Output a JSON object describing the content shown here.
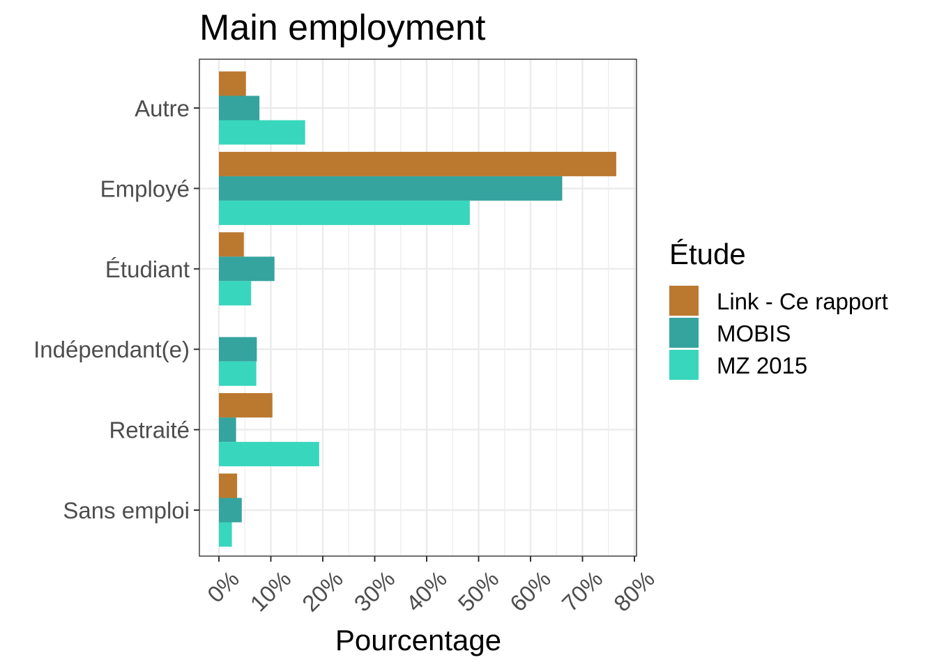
{
  "chart_data": {
    "type": "bar",
    "orientation": "horizontal",
    "title": "Main employment",
    "xlabel": "Pourcentage",
    "ylabel": "",
    "xlim": [
      0,
      80
    ],
    "x_ticks": [
      0,
      10,
      20,
      30,
      40,
      50,
      60,
      70,
      80
    ],
    "x_tick_labels": [
      "0%",
      "10%",
      "20%",
      "30%",
      "40%",
      "50%",
      "60%",
      "70%",
      "80%"
    ],
    "categories": [
      "Autre",
      "Employé",
      "Étudiant",
      "Indépendant(e)",
      "Retraité",
      "Sans emploi"
    ],
    "series": [
      {
        "name": "Link - Ce rapport",
        "color": "#bb782f",
        "values": [
          5.2,
          76.5,
          4.8,
          0,
          10.3,
          3.5
        ]
      },
      {
        "name": "MOBIS",
        "color": "#35a39e",
        "values": [
          7.8,
          66.1,
          10.7,
          7.3,
          3.3,
          4.4
        ]
      },
      {
        "name": "MZ 2015",
        "color": "#38d6bd",
        "values": [
          16.6,
          48.3,
          6.2,
          7.2,
          19.3,
          2.5
        ]
      }
    ],
    "grid": true,
    "legend": {
      "title": "Étude",
      "position": "right"
    }
  }
}
